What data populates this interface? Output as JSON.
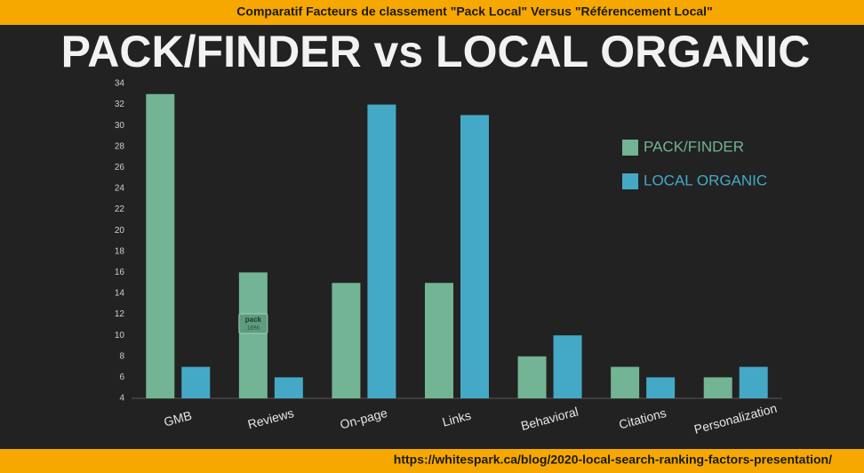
{
  "header": {
    "text": "Comparatif Facteurs de classement  \"Pack Local\" Versus \"Référencement Local\""
  },
  "footer": {
    "text": "https://whitespark.ca/blog/2020-local-search-ranking-factors-presentation/"
  },
  "chart_data": {
    "type": "bar",
    "title": "PACK/FINDER vs LOCAL ORGANIC",
    "categories": [
      "GMB",
      "Reviews",
      "On-page",
      "Links",
      "Behavioral",
      "Citations",
      "Personalization"
    ],
    "series": [
      {
        "name": "PACK/FINDER",
        "color": "#72b493",
        "values": [
          33,
          16,
          15,
          15,
          8,
          7,
          6
        ]
      },
      {
        "name": "LOCAL ORGANIC",
        "color": "#44a9c6",
        "values": [
          7,
          6,
          32,
          31,
          10,
          6,
          7
        ]
      }
    ],
    "ylim": [
      4,
      34
    ],
    "yticks": [
      4,
      6,
      8,
      10,
      12,
      14,
      16,
      18,
      20,
      22,
      24,
      26,
      28,
      30,
      32,
      34
    ],
    "grid": false,
    "legend": "upper right",
    "tooltip": {
      "title": "pack",
      "text": "16%"
    }
  }
}
